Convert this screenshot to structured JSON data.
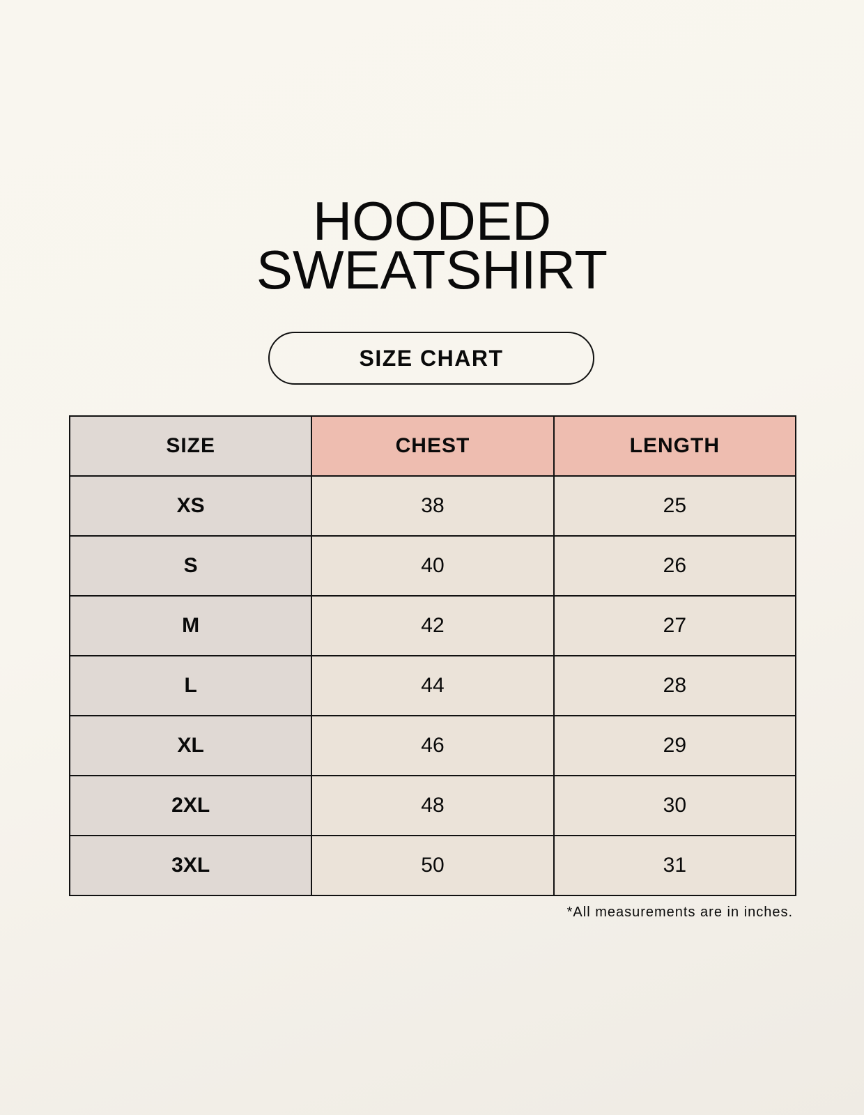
{
  "title_line1": "HOODED",
  "title_line2": "SWEATSHIRT",
  "subtitle": "SIZE CHART",
  "table": {
    "headers": [
      "SIZE",
      "CHEST",
      "LENGTH"
    ],
    "rows": [
      [
        "XS",
        "38",
        "25"
      ],
      [
        "S",
        "40",
        "26"
      ],
      [
        "M",
        "42",
        "27"
      ],
      [
        "L",
        "44",
        "28"
      ],
      [
        "XL",
        "46",
        "29"
      ],
      [
        "2XL",
        "48",
        "30"
      ],
      [
        "3XL",
        "50",
        "31"
      ]
    ]
  },
  "note": "*All measurements are in inches.",
  "colors": {
    "header_accent": "#eebdb0",
    "size_column": "#e0d9d4",
    "value_cells": "#ebe3d9"
  }
}
